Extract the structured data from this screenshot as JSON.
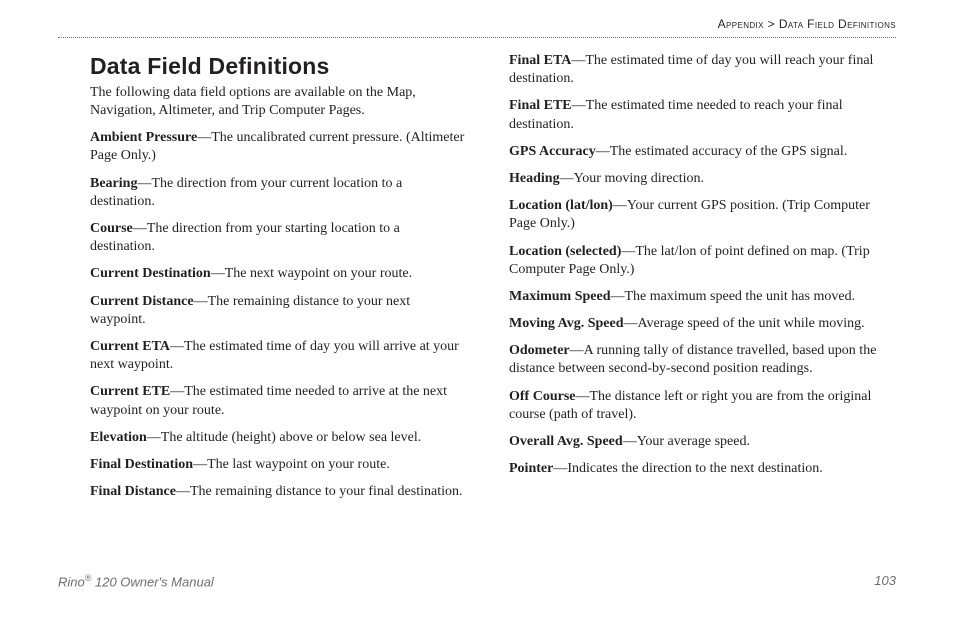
{
  "breadcrumb": {
    "section": "Appendix",
    "separator": " > ",
    "subsection": "Data Field Definitions"
  },
  "title": "Data Field Definitions",
  "intro": "The following data field options are available on the Map, Navigation, Altimeter, and Trip Computer Pages.",
  "definitions": [
    {
      "term": "Ambient Pressure",
      "desc": "—The uncalibrated current pressure. (Altimeter Page Only.)"
    },
    {
      "term": "Bearing",
      "desc": "—The direction from your current location to a destination."
    },
    {
      "term": "Course",
      "desc": "—The direction from your starting location to a destination."
    },
    {
      "term": "Current Destination",
      "desc": "—The next waypoint on your route."
    },
    {
      "term": "Current Distance",
      "desc": "—The remaining distance to your next waypoint."
    },
    {
      "term": "Current ETA",
      "desc": "—The estimated time of day you will arrive at your next waypoint."
    },
    {
      "term": "Current ETE",
      "desc": "—The estimated time needed to arrive at the next waypoint on your route."
    },
    {
      "term": "Elevation",
      "desc": "—The altitude (height) above or below sea level."
    },
    {
      "term": "Final Destination",
      "desc": "—The last waypoint on your route."
    },
    {
      "term": "Final Distance",
      "desc": "—The remaining distance to your final destination."
    },
    {
      "term": "Final ETA",
      "desc": "—The estimated time of day you will reach your final destination."
    },
    {
      "term": "Final ETE",
      "desc": "—The estimated time needed to reach your final destination."
    },
    {
      "term": "GPS Accuracy",
      "desc": "—The estimated accuracy of the GPS signal."
    },
    {
      "term": "Heading",
      "desc": "—Your moving direction."
    },
    {
      "term": "Location (lat/lon)",
      "desc": "—Your current GPS position. (Trip Computer Page Only.)"
    },
    {
      "term": "Location (selected)",
      "desc": "—The lat/lon of point defined on map. (Trip Computer Page Only.)"
    },
    {
      "term": "Maximum Speed",
      "desc": "—The maximum speed the unit has moved."
    },
    {
      "term": "Moving Avg. Speed",
      "desc": "—Average speed of the unit while moving."
    },
    {
      "term": "Odometer",
      "desc": "—A running tally of distance travelled, based upon the distance between second-by-second position readings."
    },
    {
      "term": "Off Course",
      "desc": "—The distance left or right you are from the original course (path of travel)."
    },
    {
      "term": "Overall Avg. Speed",
      "desc": "—Your average speed."
    },
    {
      "term": "Pointer",
      "desc": "—Indicates the direction to the next destination."
    }
  ],
  "footer": {
    "product_prefix": "Rino",
    "product_reg": "®",
    "product_suffix": " 120 Owner's Manual",
    "page_number": "103"
  }
}
